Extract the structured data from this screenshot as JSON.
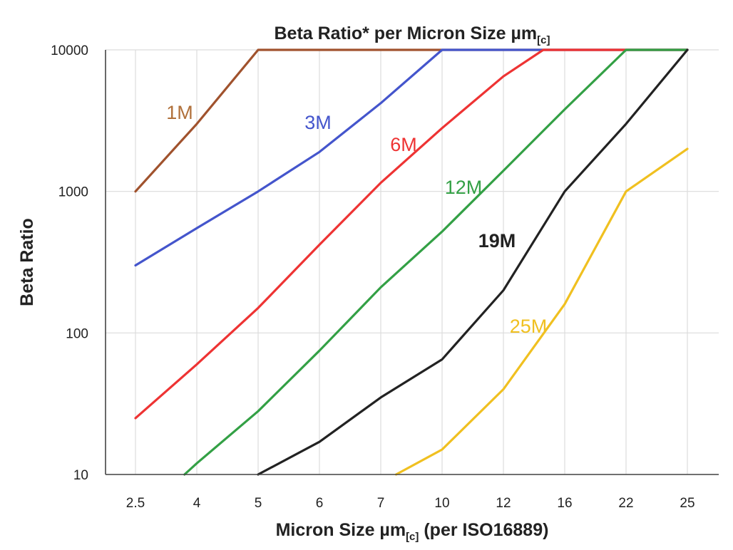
{
  "chart_data": {
    "type": "line",
    "title": {
      "main": "Beta Ratio* per Micron Size µm",
      "sub": "[c]"
    },
    "xlabel": {
      "main": "Micron Size µm",
      "sub": "[c]",
      "suffix": " (per ISO16889)"
    },
    "ylabel": "Beta Ratio",
    "y_scale": "log",
    "ylim": [
      10,
      10000
    ],
    "y_ticks": [
      "10",
      "100",
      "1000",
      "10000"
    ],
    "x_categories": [
      "2.5",
      "4",
      "5",
      "6",
      "7",
      "10",
      "12",
      "16",
      "22",
      "25"
    ],
    "grid": true,
    "series": [
      {
        "name": "1M",
        "color": "#a0522d",
        "label_color": "#b0703a",
        "points": [
          [
            0,
            1000
          ],
          [
            1,
            3000
          ],
          [
            2,
            10000
          ],
          [
            9,
            10000
          ]
        ]
      },
      {
        "name": "3M",
        "color": "#4455cc",
        "label_color": "#4455cc",
        "points": [
          [
            0,
            300
          ],
          [
            1,
            550
          ],
          [
            2,
            1000
          ],
          [
            3,
            1900
          ],
          [
            4,
            4200
          ],
          [
            5,
            10000
          ],
          [
            9,
            10000
          ]
        ]
      },
      {
        "name": "6M",
        "color": "#ee3333",
        "label_color": "#ee3333",
        "points": [
          [
            0,
            25
          ],
          [
            1,
            60
          ],
          [
            2,
            150
          ],
          [
            3,
            420
          ],
          [
            4,
            1150
          ],
          [
            5,
            2800
          ],
          [
            6,
            6500
          ],
          [
            6.65,
            10000
          ],
          [
            9,
            10000
          ]
        ]
      },
      {
        "name": "12M",
        "color": "#33a045",
        "label_color": "#33a045",
        "points": [
          [
            0.8,
            10
          ],
          [
            1,
            12
          ],
          [
            2,
            28
          ],
          [
            3,
            75
          ],
          [
            4,
            210
          ],
          [
            5,
            520
          ],
          [
            6,
            1400
          ],
          [
            7,
            3800
          ],
          [
            8,
            10000
          ],
          [
            9,
            10000
          ]
        ]
      },
      {
        "name": "19M",
        "color": "#222222",
        "label_color": "#222222",
        "points": [
          [
            2,
            10
          ],
          [
            3,
            17
          ],
          [
            4,
            35
          ],
          [
            5,
            65
          ],
          [
            6,
            200
          ],
          [
            7,
            1000
          ],
          [
            8,
            3000
          ],
          [
            9,
            10000
          ]
        ]
      },
      {
        "name": "25M",
        "color": "#f0c020",
        "label_color": "#f0c020",
        "points": [
          [
            4.25,
            10
          ],
          [
            5,
            15
          ],
          [
            6,
            40
          ],
          [
            7,
            160
          ],
          [
            8,
            1000
          ],
          [
            9,
            2000
          ]
        ]
      }
    ]
  }
}
